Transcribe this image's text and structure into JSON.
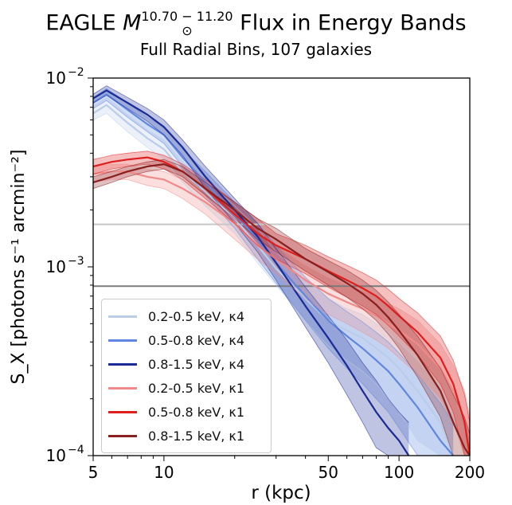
{
  "header": {
    "title_prefix": "EAGLE ",
    "title_mass_symbol": "M",
    "title_mass_sub": "⊙",
    "title_mass_sup": "10.70 − 11.20",
    "title_suffix": " Flux in Energy Bands",
    "subtitle": "Full Radial Bins, 107 galaxies"
  },
  "chart_data": {
    "type": "line",
    "xlabel": "r (kpc)",
    "ylabel": "S_X [photons s⁻¹ arcmin⁻²]",
    "xscale": "log",
    "yscale": "log",
    "xlim": [
      5,
      200
    ],
    "ylim": [
      0.0001,
      0.01
    ],
    "x_ticks": [
      {
        "value": 5,
        "label": "5"
      },
      {
        "value": 10,
        "label": "10"
      },
      {
        "value": 50,
        "label": "50"
      },
      {
        "value": 100,
        "label": "100"
      },
      {
        "value": 200,
        "label": "200"
      }
    ],
    "y_ticks": [
      {
        "value": 0.0001,
        "base": "10",
        "exp": "−4"
      },
      {
        "value": 0.001,
        "base": "10",
        "exp": "−3"
      },
      {
        "value": 0.01,
        "base": "10",
        "exp": "−2"
      }
    ],
    "hlines": [
      {
        "y": 0.00168,
        "color": "#c8c8c8"
      },
      {
        "y": 0.00079,
        "color": "#7a7a7a"
      }
    ],
    "legend_position": "lower-left",
    "series": [
      {
        "name": "0.2-0.5 keV, κ4",
        "color": "#b9cde8",
        "x": [
          5,
          5.7,
          7,
          8.5,
          10,
          12,
          15,
          20,
          25,
          30,
          40,
          50,
          60,
          70,
          80,
          90,
          100,
          120,
          150,
          170
        ],
        "y": [
          0.0065,
          0.0072,
          0.0058,
          0.0048,
          0.0042,
          0.0032,
          0.0025,
          0.0018,
          0.0013,
          0.00098,
          0.00068,
          0.00052,
          0.00046,
          0.00042,
          0.00037,
          0.00033,
          0.00029,
          0.00022,
          0.00015,
          0.0001
        ],
        "lo": [
          0.006,
          0.0065,
          0.0052,
          0.0043,
          0.0037,
          0.0028,
          0.0021,
          0.0015,
          0.00105,
          0.0008,
          0.00052,
          0.00038,
          0.00032,
          0.00028,
          0.00024,
          0.0002,
          0.00017,
          0.00012,
          0.0001,
          0.0001
        ],
        "hi": [
          0.0071,
          0.0079,
          0.0064,
          0.0053,
          0.0047,
          0.0036,
          0.0029,
          0.0021,
          0.0016,
          0.0012,
          0.00085,
          0.00068,
          0.0006,
          0.00056,
          0.0005,
          0.00045,
          0.0004,
          0.00032,
          0.00023,
          0.00016
        ]
      },
      {
        "name": "0.5-0.8 keV, κ4",
        "color": "#5f86e0",
        "x": [
          5,
          5.7,
          7,
          8.5,
          10,
          12,
          15,
          20,
          25,
          30,
          40,
          50,
          60,
          70,
          80,
          90,
          100,
          120,
          150,
          170
        ],
        "y": [
          0.0074,
          0.0082,
          0.0068,
          0.0057,
          0.005,
          0.0038,
          0.0028,
          0.0019,
          0.0014,
          0.00105,
          0.0007,
          0.00052,
          0.00043,
          0.00037,
          0.00032,
          0.00028,
          0.00024,
          0.00018,
          0.00012,
          0.0001
        ],
        "lo": [
          0.0069,
          0.0076,
          0.0062,
          0.0052,
          0.0045,
          0.0034,
          0.0024,
          0.0016,
          0.0011,
          0.00082,
          0.00052,
          0.00037,
          0.00029,
          0.00024,
          0.0002,
          0.00017,
          0.00014,
          0.0001,
          0.0001,
          0.0001
        ],
        "hi": [
          0.0079,
          0.0088,
          0.0074,
          0.0062,
          0.0055,
          0.0042,
          0.0032,
          0.0022,
          0.0017,
          0.0013,
          0.00088,
          0.00068,
          0.00058,
          0.00051,
          0.00045,
          0.0004,
          0.00035,
          0.00027,
          0.00019,
          0.00015
        ]
      },
      {
        "name": "0.8-1.5 keV, κ4",
        "color": "#1a2b96",
        "x": [
          5,
          5.7,
          7,
          8.5,
          10,
          12,
          15,
          20,
          25,
          30,
          40,
          50,
          60,
          70,
          80,
          90,
          100,
          110
        ],
        "y": [
          0.0078,
          0.0086,
          0.0074,
          0.0064,
          0.0055,
          0.0043,
          0.003,
          0.002,
          0.00145,
          0.00105,
          0.00062,
          0.00042,
          0.0003,
          0.00022,
          0.00017,
          0.00014,
          0.00012,
          0.0001
        ],
        "lo": [
          0.0074,
          0.0081,
          0.0069,
          0.0059,
          0.005,
          0.0039,
          0.0026,
          0.0017,
          0.0012,
          0.00085,
          0.00048,
          0.00031,
          0.00021,
          0.00015,
          0.00011,
          0.0001,
          0.0001,
          0.0001
        ],
        "hi": [
          0.0082,
          0.0091,
          0.0079,
          0.0069,
          0.006,
          0.0047,
          0.0034,
          0.0023,
          0.0017,
          0.00125,
          0.00078,
          0.00055,
          0.00041,
          0.00031,
          0.00025,
          0.0002,
          0.00017,
          0.00015
        ]
      },
      {
        "name": "0.2-0.5 keV, κ1",
        "color": "#f08a8a",
        "x": [
          5,
          6,
          7,
          8.5,
          10,
          12,
          15,
          20,
          25,
          30,
          40,
          50,
          60,
          70,
          80,
          90,
          100,
          120,
          150,
          170,
          190,
          200
        ],
        "y": [
          0.0031,
          0.0032,
          0.0032,
          0.003,
          0.0029,
          0.0026,
          0.0022,
          0.0017,
          0.0013,
          0.0011,
          0.00085,
          0.00072,
          0.00065,
          0.0006,
          0.00055,
          0.0005,
          0.00046,
          0.00039,
          0.00029,
          0.00022,
          0.00015,
          0.0001
        ],
        "lo": [
          0.0028,
          0.0029,
          0.0029,
          0.0027,
          0.0026,
          0.0023,
          0.0019,
          0.0014,
          0.0011,
          0.00092,
          0.00068,
          0.00056,
          0.0005,
          0.00045,
          0.00041,
          0.00037,
          0.00033,
          0.00027,
          0.0002,
          0.00015,
          0.0001,
          0.0001
        ],
        "hi": [
          0.0034,
          0.0035,
          0.0035,
          0.0033,
          0.0032,
          0.0029,
          0.0025,
          0.002,
          0.0016,
          0.0013,
          0.00102,
          0.00088,
          0.0008,
          0.00075,
          0.0007,
          0.00064,
          0.0006,
          0.00052,
          0.00039,
          0.0003,
          0.00022,
          0.00016
        ]
      },
      {
        "name": "0.5-0.8 keV, κ1",
        "color": "#e01e1e",
        "x": [
          5,
          6,
          7,
          8.5,
          10,
          12,
          15,
          20,
          25,
          30,
          40,
          50,
          60,
          70,
          80,
          90,
          100,
          120,
          150,
          170,
          190,
          200
        ],
        "y": [
          0.0034,
          0.0036,
          0.0037,
          0.0038,
          0.0036,
          0.0032,
          0.0026,
          0.0019,
          0.0015,
          0.0013,
          0.0011,
          0.00095,
          0.00085,
          0.00077,
          0.0007,
          0.00062,
          0.00055,
          0.00045,
          0.00033,
          0.00024,
          0.00015,
          0.0001
        ],
        "lo": [
          0.0031,
          0.0033,
          0.0034,
          0.0035,
          0.0033,
          0.0029,
          0.0023,
          0.0017,
          0.0013,
          0.0011,
          0.00092,
          0.00078,
          0.00069,
          0.00062,
          0.00056,
          0.00049,
          0.00043,
          0.00034,
          0.00024,
          0.00017,
          0.0001,
          0.0001
        ],
        "hi": [
          0.0037,
          0.0039,
          0.004,
          0.0041,
          0.0039,
          0.0035,
          0.0029,
          0.0022,
          0.0018,
          0.0015,
          0.0013,
          0.00113,
          0.00102,
          0.00093,
          0.00085,
          0.00076,
          0.00068,
          0.00057,
          0.00043,
          0.00032,
          0.00021,
          0.00015
        ]
      },
      {
        "name": "0.8-1.5 keV, κ1",
        "color": "#8a1f1f",
        "x": [
          5,
          6,
          7,
          8.5,
          10,
          12,
          15,
          20,
          25,
          30,
          40,
          50,
          60,
          70,
          80,
          90,
          100,
          120,
          150,
          170,
          190,
          200
        ],
        "y": [
          0.0028,
          0.003,
          0.0032,
          0.0034,
          0.0035,
          0.0032,
          0.0026,
          0.002,
          0.0016,
          0.0014,
          0.0011,
          0.00094,
          0.00082,
          0.00072,
          0.00063,
          0.00054,
          0.00046,
          0.00034,
          0.00022,
          0.00015,
          0.00011,
          0.0001
        ],
        "lo": [
          0.0026,
          0.0028,
          0.003,
          0.0032,
          0.0033,
          0.003,
          0.0024,
          0.0018,
          0.0014,
          0.0012,
          0.00095,
          0.0008,
          0.00069,
          0.0006,
          0.00052,
          0.00044,
          0.00037,
          0.00026,
          0.00016,
          0.0001,
          0.0001,
          0.0001
        ],
        "hi": [
          0.003,
          0.0032,
          0.0034,
          0.0036,
          0.0037,
          0.0034,
          0.0028,
          0.0022,
          0.0018,
          0.0016,
          0.00125,
          0.00108,
          0.00096,
          0.00085,
          0.00075,
          0.00065,
          0.00056,
          0.00043,
          0.00029,
          0.00021,
          0.00016,
          0.00013
        ]
      }
    ]
  }
}
